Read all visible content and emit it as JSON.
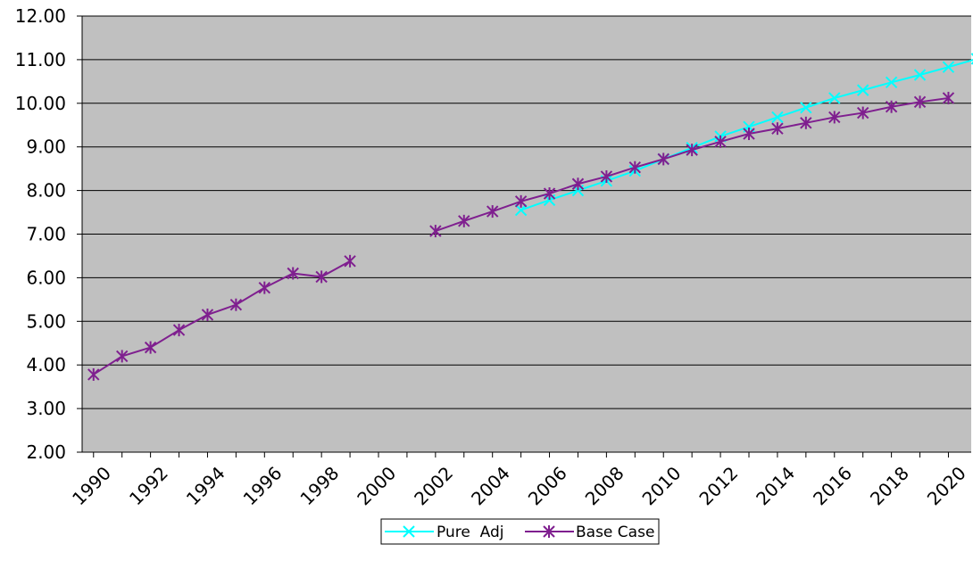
{
  "chart_data": {
    "type": "line",
    "title": "",
    "xlabel": "",
    "ylabel": "",
    "ylim": [
      2,
      12
    ],
    "y_ticks": [
      "2.00",
      "3.00",
      "4.00",
      "5.00",
      "6.00",
      "7.00",
      "8.00",
      "9.00",
      "10.00",
      "11.00",
      "12.00"
    ],
    "x_ticks": [
      "1990",
      "1992",
      "1994",
      "1996",
      "1998",
      "2000",
      "2002",
      "2004",
      "2006",
      "2008",
      "2010",
      "2012",
      "2014",
      "2016",
      "2018",
      "2020"
    ],
    "grid": "horizontal",
    "legend_position": "bottom-center",
    "background_color": "#c0c0c0",
    "series": [
      {
        "name": "Pure  Adj",
        "color": "#00ffff",
        "marker": "x",
        "x": [
          2005,
          2006,
          2007,
          2008,
          2009,
          2010,
          2011,
          2012,
          2013,
          2014,
          2015,
          2016,
          2017,
          2018,
          2019,
          2020,
          2021
        ],
        "values": [
          7.55,
          7.78,
          8.0,
          8.22,
          8.45,
          8.72,
          8.98,
          9.24,
          9.46,
          9.68,
          9.9,
          10.12,
          10.3,
          10.48,
          10.65,
          10.83,
          11.02
        ]
      },
      {
        "name": "Base Case",
        "color": "#7f1f8f",
        "marker": "star",
        "x": [
          1990,
          1991,
          1992,
          1993,
          1994,
          1995,
          1996,
          1997,
          1998,
          1999,
          null,
          null,
          2002,
          2003,
          2004,
          2005,
          2006,
          2007,
          2008,
          2009,
          2010,
          2011,
          2012,
          2013,
          2014,
          2015,
          2016,
          2017,
          2018,
          2019,
          2020
        ],
        "values": [
          3.78,
          4.2,
          4.4,
          4.8,
          5.15,
          5.38,
          5.77,
          6.1,
          6.02,
          6.38,
          null,
          null,
          7.07,
          7.3,
          7.52,
          7.75,
          7.93,
          8.15,
          8.32,
          8.53,
          8.72,
          8.93,
          9.12,
          9.3,
          9.42,
          9.55,
          9.68,
          9.78,
          9.92,
          10.03,
          10.12
        ]
      }
    ]
  }
}
